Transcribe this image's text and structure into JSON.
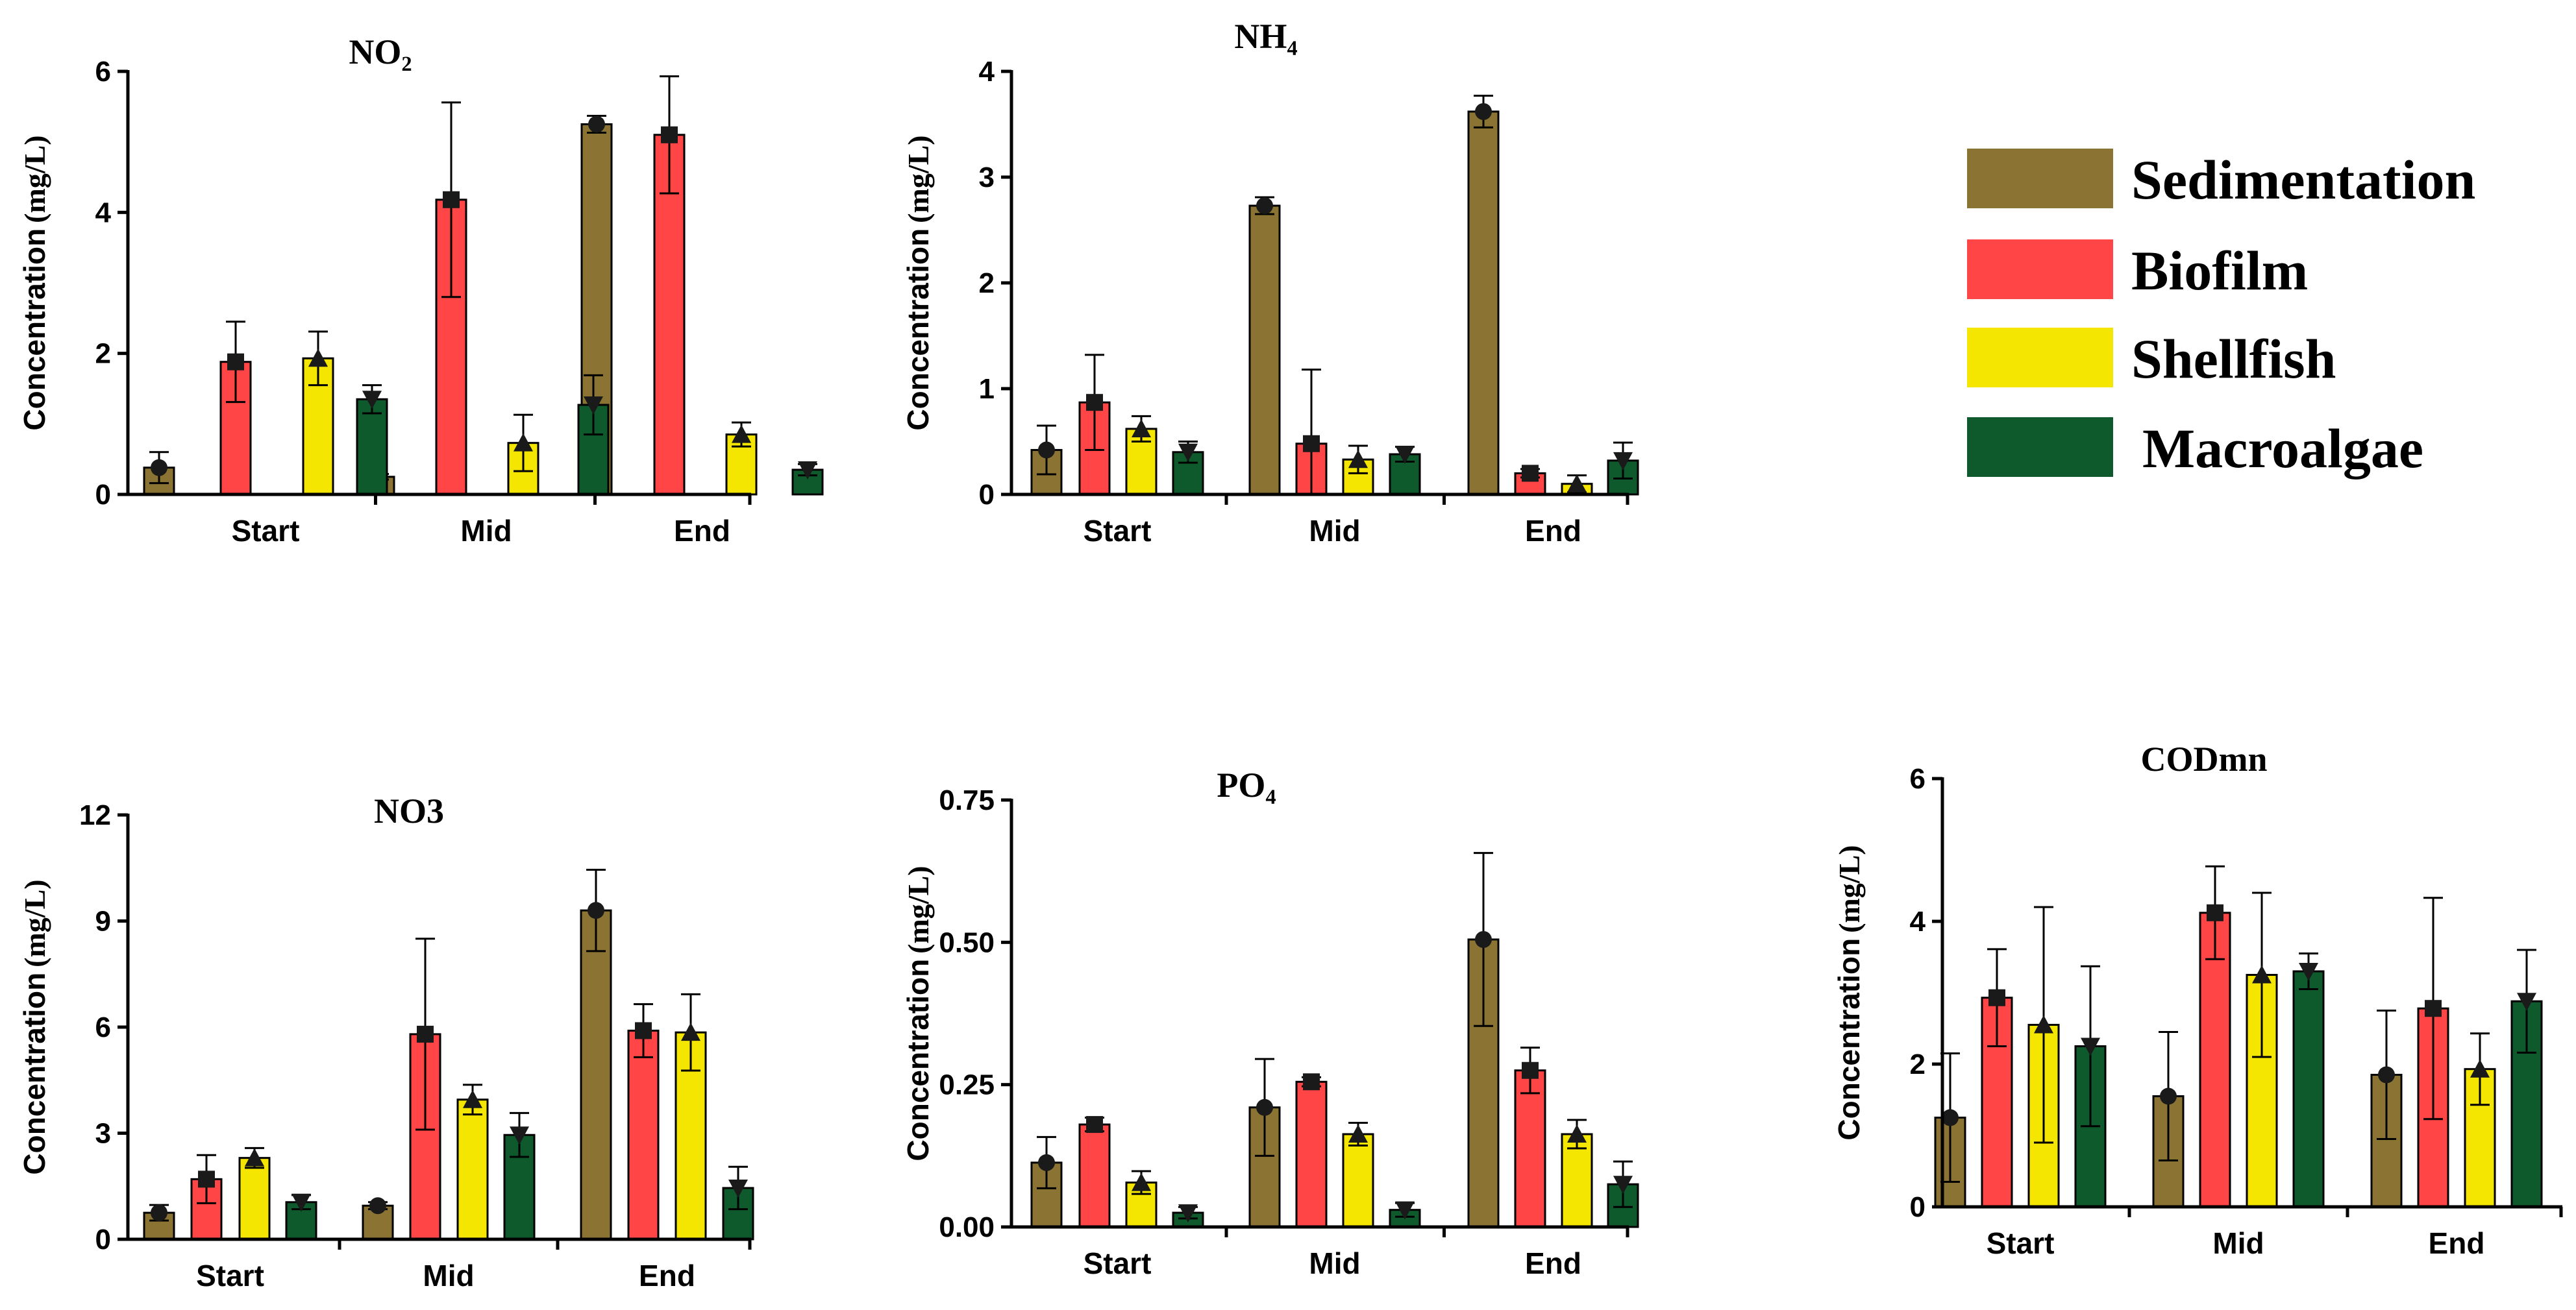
{
  "figure": {
    "categories": [
      "Start",
      "Mid",
      "End"
    ],
    "legend": [
      {
        "name": "Sedimentation",
        "color": "#8B7433",
        "marker": "circle"
      },
      {
        "name": "Biofilm",
        "color": "#FF4545",
        "marker": "square"
      },
      {
        "name": "Shellfish",
        "color": "#F4E600",
        "marker": "triangle-up"
      },
      {
        "name": "Macroalgae",
        "color": "#0F5A2C",
        "marker": "triangle-down"
      }
    ]
  },
  "chart_data": [
    {
      "type": "bar",
      "title": "NO₂",
      "ylabel": "Concentration",
      "ylabel_unit": "(mg/L)",
      "categories": [
        "Start",
        "Mid",
        "End"
      ],
      "ylim": [
        0,
        6
      ],
      "yticks": [
        0,
        2,
        4,
        6
      ],
      "ytick_labels": [
        "0",
        "2",
        "4",
        "6"
      ],
      "series": [
        {
          "name": "Sedimentation",
          "values": [
            0.38,
            0.25,
            5.25
          ],
          "errors": [
            0.22,
            0.04,
            0.12
          ]
        },
        {
          "name": "Biofilm",
          "values": [
            1.88,
            4.18,
            5.1
          ],
          "errors": [
            0.57,
            1.38,
            0.83
          ]
        },
        {
          "name": "Shellfish",
          "values": [
            1.93,
            0.73,
            0.85
          ],
          "errors": [
            0.38,
            0.4,
            0.17
          ]
        },
        {
          "name": "Macroalgae",
          "values": [
            1.35,
            1.27,
            0.35
          ],
          "errors": [
            0.2,
            0.42,
            0.08
          ]
        }
      ]
    },
    {
      "type": "bar",
      "title": "NH₄",
      "ylabel": "Concentration",
      "ylabel_unit": "(mg/L)",
      "categories": [
        "Start",
        "Mid",
        "End"
      ],
      "ylim": [
        0,
        4
      ],
      "yticks": [
        0,
        1,
        2,
        3,
        4
      ],
      "ytick_labels": [
        "0",
        "1",
        "2",
        "3",
        "4"
      ],
      "series": [
        {
          "name": "Sedimentation",
          "values": [
            0.42,
            2.73,
            3.62
          ],
          "errors": [
            0.23,
            0.08,
            0.15
          ]
        },
        {
          "name": "Biofilm",
          "values": [
            0.87,
            0.48,
            0.2
          ],
          "errors": [
            0.45,
            0.7,
            0.04
          ]
        },
        {
          "name": "Shellfish",
          "values": [
            0.62,
            0.33,
            0.1
          ],
          "errors": [
            0.12,
            0.13,
            0.08
          ]
        },
        {
          "name": "Macroalgae",
          "values": [
            0.4,
            0.38,
            0.32
          ],
          "errors": [
            0.1,
            0.07,
            0.17
          ]
        }
      ]
    },
    {
      "type": "bar",
      "title": "NO3",
      "ylabel": "Concentration",
      "ylabel_unit": "(mg/L)",
      "categories": [
        "Start",
        "Mid",
        "End"
      ],
      "ylim": [
        0,
        12
      ],
      "yticks": [
        0,
        3,
        6,
        9,
        12
      ],
      "ytick_labels": [
        "0",
        "3",
        "6",
        "9",
        "12"
      ],
      "series": [
        {
          "name": "Sedimentation",
          "values": [
            0.75,
            0.95,
            9.3
          ],
          "errors": [
            0.22,
            0.1,
            1.15
          ]
        },
        {
          "name": "Biofilm",
          "values": [
            1.7,
            5.8,
            5.9
          ],
          "errors": [
            0.68,
            2.7,
            0.75
          ]
        },
        {
          "name": "Shellfish",
          "values": [
            2.3,
            3.95,
            5.85
          ],
          "errors": [
            0.28,
            0.42,
            1.08
          ]
        },
        {
          "name": "Macroalgae",
          "values": [
            1.05,
            2.95,
            1.45
          ],
          "errors": [
            0.2,
            0.62,
            0.6
          ]
        }
      ]
    },
    {
      "type": "bar",
      "title": "PO₄",
      "ylabel": "Concentration",
      "ylabel_unit": "(mg/L)",
      "categories": [
        "Start",
        "Mid",
        "End"
      ],
      "ylim": [
        0,
        0.75
      ],
      "yticks": [
        0,
        0.25,
        0.5,
        0.75
      ],
      "ytick_labels": [
        "0.00",
        "0.25",
        "0.50",
        "0.75"
      ],
      "series": [
        {
          "name": "Sedimentation",
          "values": [
            0.113,
            0.21,
            0.505
          ],
          "errors": [
            0.045,
            0.085,
            0.152
          ]
        },
        {
          "name": "Biofilm",
          "values": [
            0.18,
            0.255,
            0.275
          ],
          "errors": [
            0.012,
            0.008,
            0.04
          ]
        },
        {
          "name": "Shellfish",
          "values": [
            0.078,
            0.163,
            0.163
          ],
          "errors": [
            0.02,
            0.02,
            0.025
          ]
        },
        {
          "name": "Macroalgae",
          "values": [
            0.025,
            0.03,
            0.075
          ],
          "errors": [
            0.01,
            0.012,
            0.04
          ]
        }
      ]
    },
    {
      "type": "bar",
      "title": "CODmn",
      "ylabel": "Concentration",
      "ylabel_unit": "(mg/L)",
      "categories": [
        "Start",
        "Mid",
        "End"
      ],
      "ylim": [
        0,
        6
      ],
      "yticks": [
        0,
        2,
        4,
        6
      ],
      "ytick_labels": [
        "0",
        "2",
        "4",
        "6"
      ],
      "series": [
        {
          "name": "Sedimentation",
          "values": [
            1.25,
            1.55,
            1.85
          ],
          "errors": [
            0.9,
            0.9,
            0.9
          ]
        },
        {
          "name": "Biofilm",
          "values": [
            2.93,
            4.12,
            2.78
          ],
          "errors": [
            0.68,
            0.65,
            1.55
          ]
        },
        {
          "name": "Shellfish",
          "values": [
            2.55,
            3.25,
            1.93
          ],
          "errors": [
            1.65,
            1.15,
            0.5
          ]
        },
        {
          "name": "Macroalgae",
          "values": [
            2.25,
            3.3,
            2.88
          ],
          "errors": [
            1.12,
            0.25,
            0.72
          ]
        }
      ]
    }
  ]
}
